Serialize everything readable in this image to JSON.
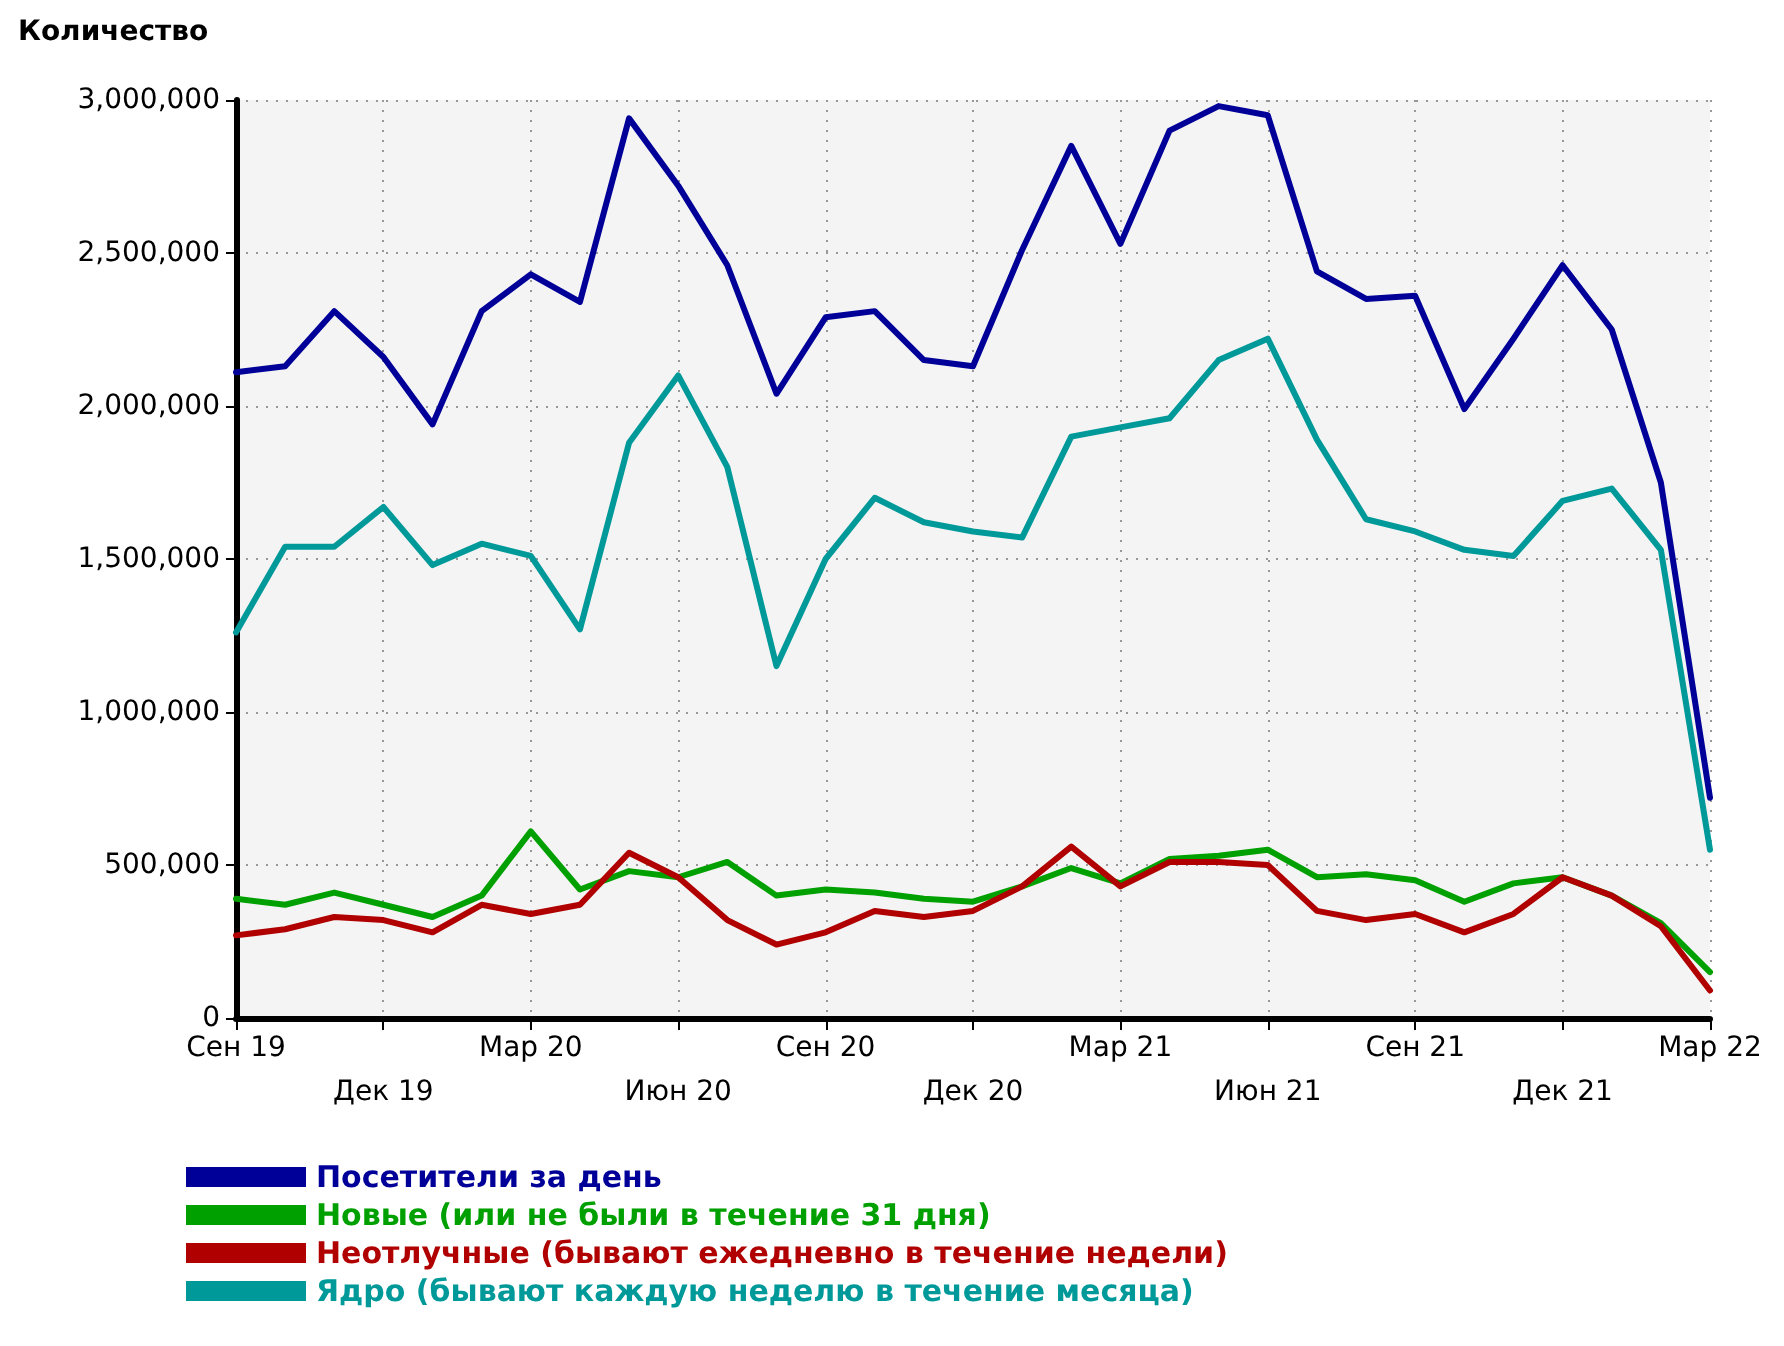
{
  "chart_data": {
    "type": "line",
    "ylabel": "Количество",
    "categories": [
      "Сен 19",
      null,
      null,
      "Дек 19",
      null,
      null,
      "Мар 20",
      null,
      null,
      "Июн 20",
      null,
      null,
      "Сен 20",
      null,
      null,
      "Дек 20",
      null,
      null,
      "Мар 21",
      null,
      null,
      "Июн 21",
      null,
      null,
      "Сен 21",
      null,
      null,
      "Дек 21",
      null,
      null,
      "Мар 22"
    ],
    "series": [
      {
        "name": "Посетители за день",
        "color": "#000099",
        "values": [
          2110000,
          2130000,
          2310000,
          2160000,
          1940000,
          2310000,
          2430000,
          2340000,
          2940000,
          2720000,
          2460000,
          2040000,
          2290000,
          2310000,
          2150000,
          2130000,
          2510000,
          2850000,
          2530000,
          2900000,
          2980000,
          2950000,
          2440000,
          2350000,
          2360000,
          1990000,
          2220000,
          2460000,
          2250000,
          1750000,
          720000
        ]
      },
      {
        "name": "Новые (или не были в течение 31 дня)",
        "color": "#00a000",
        "values": [
          390000,
          370000,
          410000,
          370000,
          330000,
          400000,
          610000,
          420000,
          480000,
          460000,
          510000,
          400000,
          420000,
          410000,
          390000,
          380000,
          430000,
          490000,
          440000,
          520000,
          530000,
          550000,
          460000,
          470000,
          450000,
          380000,
          440000,
          460000,
          400000,
          310000,
          150000
        ]
      },
      {
        "name": "Неотлучные (бывают ежедневно в течение недели)",
        "color": "#b00000",
        "values": [
          270000,
          290000,
          330000,
          320000,
          280000,
          370000,
          340000,
          370000,
          540000,
          460000,
          320000,
          240000,
          280000,
          350000,
          330000,
          350000,
          430000,
          560000,
          430000,
          510000,
          510000,
          500000,
          350000,
          320000,
          340000,
          280000,
          340000,
          460000,
          400000,
          300000,
          90000
        ]
      },
      {
        "name": "Ядро (бывают каждую неделю в течение месяца)",
        "color": "#009999",
        "values": [
          1260000,
          1540000,
          1540000,
          1670000,
          1480000,
          1550000,
          1510000,
          1270000,
          1880000,
          2100000,
          1800000,
          1150000,
          1500000,
          1700000,
          1620000,
          1590000,
          1570000,
          1900000,
          1930000,
          1960000,
          2150000,
          2220000,
          1890000,
          1630000,
          1590000,
          1530000,
          1510000,
          1690000,
          1730000,
          1530000,
          550000
        ]
      }
    ],
    "ylim": [
      0,
      3000000
    ],
    "yticks": [
      0,
      {
        "value": 500000,
        "label": "500,000"
      },
      {
        "value": 1000000,
        "label": "1,000,000"
      },
      {
        "value": 1500000,
        "label": "1,500,000"
      },
      {
        "value": 2000000,
        "label": "2,000,000"
      },
      {
        "value": 2500000,
        "label": "2,500,000"
      },
      {
        "value": 3000000,
        "label": "3,000,000"
      }
    ],
    "grid": true,
    "legend": "bottom",
    "marker": "none",
    "line_style": "solid"
  }
}
